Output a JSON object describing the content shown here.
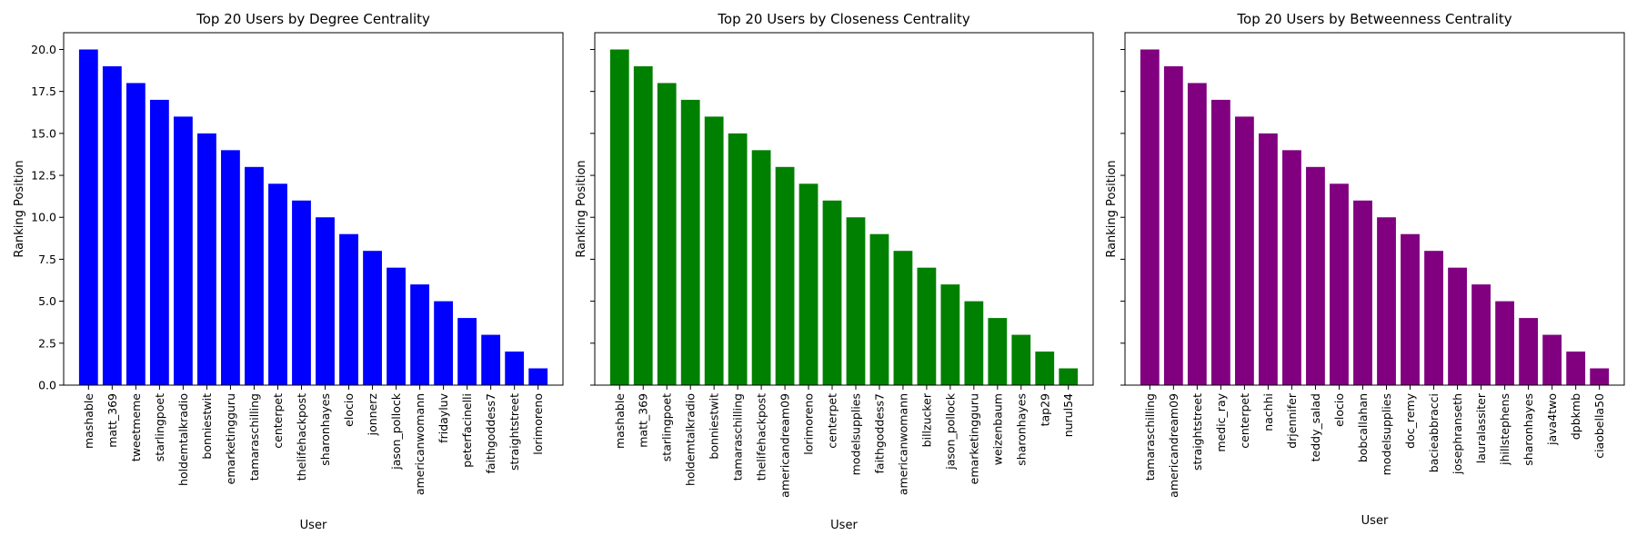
{
  "chart_data": [
    {
      "type": "bar",
      "title": "Top 20 Users by Degree Centrality",
      "xlabel": "User",
      "ylabel": "Ranking Position",
      "color": "#0000ff",
      "ylim": [
        0,
        21
      ],
      "yticks": [
        "0.0",
        "2.5",
        "5.0",
        "7.5",
        "10.0",
        "12.5",
        "15.0",
        "17.5",
        "20.0"
      ],
      "show_ytick_labels": true,
      "categories": [
        "mashable",
        "matt_369",
        "tweetmeme",
        "starlingpoet",
        "holdemtalkradio",
        "bonniestwit",
        "emarketingguru",
        "tamaraschilling",
        "centerpet",
        "thelifehackpost",
        "sharonhayes",
        "elocio",
        "jonnerz",
        "jason_pollock",
        "americanwomann",
        "fridayluv",
        "peterfacinelli",
        "faithgoddess7",
        "straightstreet",
        "lorimoreno"
      ],
      "values": [
        20,
        19,
        18,
        17,
        16,
        15,
        14,
        13,
        12,
        11,
        10,
        9,
        8,
        7,
        6,
        5,
        4,
        3,
        2,
        1
      ]
    },
    {
      "type": "bar",
      "title": "Top 20 Users by Closeness Centrality",
      "xlabel": "User",
      "ylabel": "Ranking Position",
      "color": "#008000",
      "ylim": [
        0,
        21
      ],
      "yticks": [
        "0.0",
        "2.5",
        "5.0",
        "7.5",
        "10.0",
        "12.5",
        "15.0",
        "17.5",
        "20.0"
      ],
      "show_ytick_labels": false,
      "categories": [
        "mashable",
        "matt_369",
        "starlingpoet",
        "holdemtalkradio",
        "bonniestwit",
        "tamaraschilling",
        "thelifehackpost",
        "americandream09",
        "lorimoreno",
        "centerpet",
        "modelsupplies",
        "faithgoddess7",
        "americanwomann",
        "billzucker",
        "jason_pollock",
        "emarketingguru",
        "weizenbaum",
        "sharonhayes",
        "tap29",
        "nurul54"
      ],
      "values": [
        20,
        19,
        18,
        17,
        16,
        15,
        14,
        13,
        12,
        11,
        10,
        9,
        8,
        7,
        6,
        5,
        4,
        3,
        2,
        1
      ]
    },
    {
      "type": "bar",
      "title": "Top 20 Users by Betweenness Centrality",
      "xlabel": "User",
      "ylabel": "Ranking Position",
      "color": "#800080",
      "ylim": [
        0,
        21
      ],
      "yticks": [
        "0.0",
        "2.5",
        "5.0",
        "7.5",
        "10.0",
        "12.5",
        "15.0",
        "17.5",
        "20.0"
      ],
      "show_ytick_labels": false,
      "categories": [
        "tamaraschilling",
        "americandream09",
        "straightstreet",
        "medic_ray",
        "centerpet",
        "nachhi",
        "drjennifer",
        "teddy_salad",
        "elocio",
        "bobcallahan",
        "modelsupplies",
        "doc_remy",
        "bacieabbracci",
        "josephranseth",
        "lauralassiter",
        "jhillstephens",
        "sharonhayes",
        "java4two",
        "dpbkmb",
        "ciaobella50"
      ],
      "values": [
        20,
        19,
        18,
        17,
        16,
        15,
        14,
        13,
        12,
        11,
        10,
        9,
        8,
        7,
        6,
        5,
        4,
        3,
        2,
        1
      ]
    }
  ]
}
